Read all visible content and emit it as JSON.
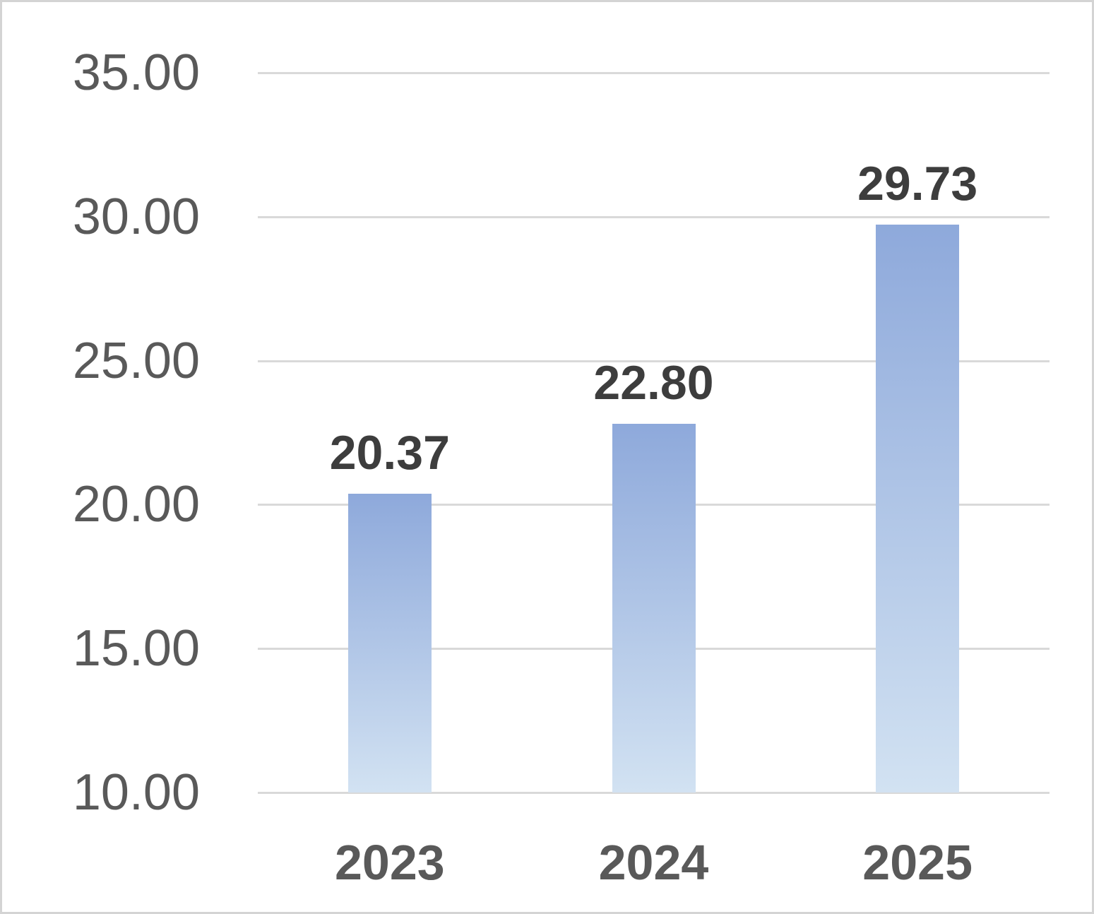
{
  "chart_data": {
    "type": "bar",
    "categories": [
      "2023",
      "2024",
      "2025"
    ],
    "values": [
      20.37,
      22.8,
      29.73
    ],
    "data_labels": [
      "20.37",
      "22.80",
      "29.73"
    ],
    "title": "",
    "xlabel": "",
    "ylabel": "",
    "ylim": [
      10,
      35
    ],
    "ytick_step": 5,
    "ytick_labels": [
      "35.00",
      "30.00",
      "25.00",
      "20.00",
      "15.00",
      "10.00"
    ],
    "ytick_values": [
      35,
      30,
      25,
      20,
      15,
      10
    ],
    "grid": true,
    "legend": false,
    "colors": {
      "bar_gradient_top": "#8ea9db",
      "bar_gradient_bottom": "#d2e2f2",
      "gridline": "#d9d9d9",
      "axis_label": "#595959",
      "data_label": "#3d3d3d",
      "frame_border": "#d4d4d4",
      "background": "#ffffff"
    }
  }
}
